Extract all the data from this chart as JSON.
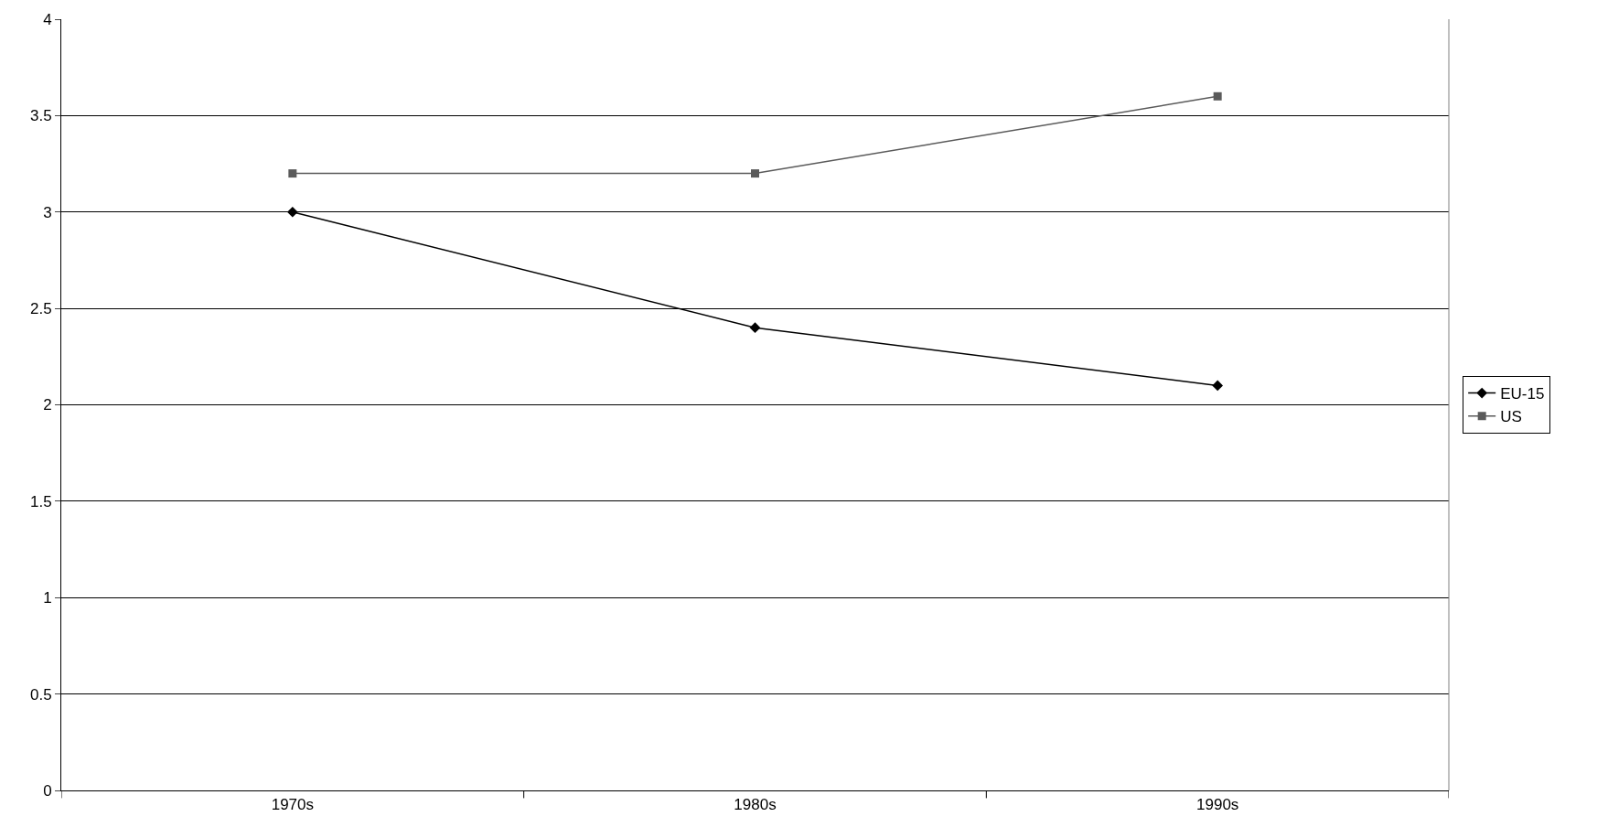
{
  "chart_data": {
    "type": "line",
    "categories": [
      "1970s",
      "1980s",
      "1990s"
    ],
    "series": [
      {
        "name": "EU-15",
        "color": "#000000",
        "marker": "diamond",
        "values": [
          3.0,
          2.4,
          2.1
        ]
      },
      {
        "name": "US",
        "color": "#5a5a5a",
        "marker": "square",
        "values": [
          3.2,
          3.2,
          3.6
        ]
      }
    ],
    "ylim": [
      0,
      4
    ],
    "yticks": [
      0,
      0.5,
      1,
      1.5,
      2,
      2.5,
      3,
      3.5,
      4
    ],
    "grid": "y",
    "legend": "right",
    "line_style": "solid"
  }
}
